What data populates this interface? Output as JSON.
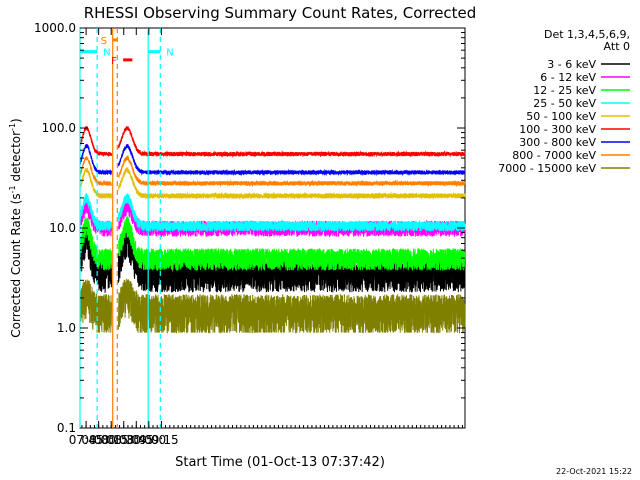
{
  "chart_data": {
    "type": "line",
    "title": "RHESSI Observing Summary Count Rates, Corrected",
    "xlabel": "Start Time (01-Oct-13 07:37:42)",
    "ylabel_main": "Corrected Count Rate (s",
    "ylabel_sup1": "-1",
    "ylabel_mid": " detector",
    "ylabel_sup2": "-1",
    "ylabel_end": ")",
    "yscale": "log",
    "ylim": [
      0.1,
      1000
    ],
    "xlim_min": [
      457.7,
      918
    ],
    "x_ticks": [
      {
        "m": 465,
        "label": "07:45"
      },
      {
        "m": 480,
        "label": "08:00"
      },
      {
        "m": 495,
        "label": "08:15"
      },
      {
        "m": 510,
        "label": "08:30"
      },
      {
        "m": 525,
        "label": "08:45"
      },
      {
        "m": 540,
        "label": "09:00"
      },
      {
        "m": 555,
        "label": "09:15"
      }
    ],
    "y_ticks": [
      {
        "v": 0.1,
        "label": "0.1"
      },
      {
        "v": 1,
        "label": "1.0"
      },
      {
        "v": 10,
        "label": "10.0"
      },
      {
        "v": 100,
        "label": "100.0"
      },
      {
        "v": 1000,
        "label": "1000.0"
      }
    ],
    "legend_header": [
      "Det 1,3,4,5,6,9,",
      "Att 0"
    ],
    "series": [
      {
        "name": "3 - 6 keV",
        "color": "#000000",
        "night": 3.5,
        "day": 7.5,
        "jitter": 0.35
      },
      {
        "name": "6 - 12 keV",
        "color": "#ff00ff",
        "night": 10,
        "day": 16,
        "jitter": 0.18
      },
      {
        "name": "12 - 25 keV",
        "color": "#00ff00",
        "night": 5,
        "day": 10.5,
        "jitter": 0.25
      },
      {
        "name": "25 - 50 keV",
        "color": "#00ffff",
        "night": 10.5,
        "day": 20,
        "jitter": 0.12
      },
      {
        "name": "50 - 100 keV",
        "color": "#e0c000",
        "night": 21,
        "day": 38,
        "jitter": 0.06
      },
      {
        "name": "100 - 300 keV",
        "color": "#ff0000",
        "night": 55,
        "day": 100,
        "jitter": 0.05
      },
      {
        "name": "300 - 800 keV",
        "color": "#0000ff",
        "night": 36,
        "day": 66,
        "jitter": 0.05
      },
      {
        "name": "800 - 7000 keV",
        "color": "#ff8000",
        "night": 28,
        "day": 50,
        "jitter": 0.05
      },
      {
        "name": "7000 - 15000 keV",
        "color": "#808000",
        "night": 1.5,
        "day": 2.2,
        "jitter": 0.45
      }
    ],
    "annotations": [
      {
        "label": "N",
        "color": "#00ffff",
        "x0": 457.7,
        "x1": 478.2,
        "y": 580
      },
      {
        "label": "N",
        "color": "#00ffff",
        "x0": 539.2,
        "x1": 553.7,
        "y": 580
      },
      {
        "label": "S",
        "color": "#ff8000",
        "x0": 496.8,
        "x1": 502.3,
        "y": 760
      },
      {
        "label": "F",
        "color": "#ff0000",
        "x0": 509.3,
        "x1": 520.3,
        "y": 480
      }
    ],
    "vlines": [
      {
        "m": 457.7,
        "color": "#00ffff",
        "style": "solid"
      },
      {
        "m": 478.2,
        "color": "#00ffff",
        "style": "dash"
      },
      {
        "m": 496.8,
        "color": "#ff8000",
        "style": "solid"
      },
      {
        "m": 502.3,
        "color": "#ff8000",
        "style": "dash"
      },
      {
        "m": 539.2,
        "color": "#00ffff",
        "style": "solid"
      },
      {
        "m": 553.7,
        "color": "#00ffff",
        "style": "dash"
      }
    ],
    "gap_minutes": [
      495.5,
      503.7
    ]
  },
  "footer_stamp": "22-Oct-2021 15:22"
}
